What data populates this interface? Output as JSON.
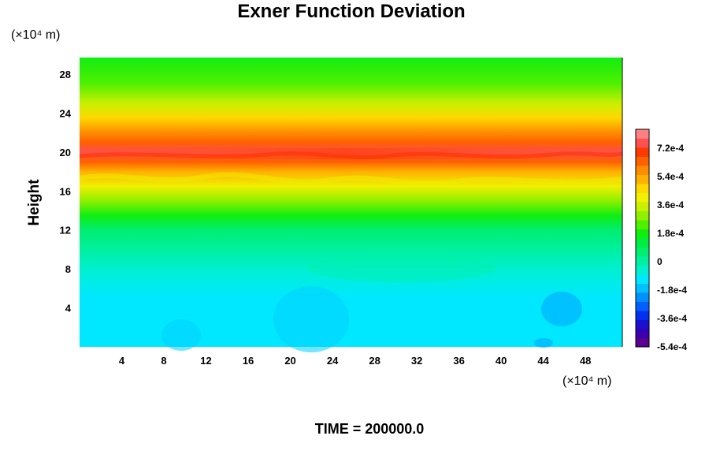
{
  "chart_data": {
    "type": "heatmap",
    "title": "Exner Function Deviation",
    "ylabel": "Height",
    "x_unit_label": "(×10⁴ m)",
    "y_unit_label": "(×10⁴ m)",
    "time_label": "TIME = 200000.0",
    "xlim": [
      0,
      51.5
    ],
    "ylim": [
      0,
      29.7
    ],
    "x_ticks": [
      4,
      8,
      12,
      16,
      20,
      24,
      28,
      32,
      36,
      40,
      44,
      48
    ],
    "x_tick_labels": [
      "4",
      "8",
      "12",
      "16",
      "20",
      "24",
      "28",
      "32",
      "36",
      "40",
      "44",
      "48"
    ],
    "y_ticks": [
      4,
      8,
      12,
      16,
      20,
      24,
      28
    ],
    "y_tick_labels": [
      "4",
      "8",
      "12",
      "16",
      "20",
      "24",
      "28"
    ],
    "colorbar": {
      "range": [
        -0.00054,
        0.00084
      ],
      "tick_values": [
        0.00072,
        0.00054,
        0.00036,
        0.00018,
        0,
        -0.00018,
        -0.00036,
        -0.00054
      ],
      "tick_labels": [
        "7.2e-4",
        "5.4e-4",
        "3.6e-4",
        "1.8e-4",
        "0",
        "-1.8e-4",
        "-3.6e-4",
        "-5.4e-4"
      ],
      "colors": [
        "#5a0090",
        "#3a00b0",
        "#1a10d0",
        "#0030f0",
        "#0060ff",
        "#0090ff",
        "#00c0ff",
        "#00e8ff",
        "#00f0d0",
        "#00f0a0",
        "#00ee70",
        "#00ee40",
        "#10ee10",
        "#50f000",
        "#90f000",
        "#c8f000",
        "#f0f000",
        "#ffd800",
        "#ffb000",
        "#ff8c00",
        "#ff6000",
        "#ff3a00",
        "#ff5050",
        "#ff8080"
      ]
    },
    "profile": [
      {
        "height": 0,
        "value": -0.00013
      },
      {
        "height": 3,
        "value": -0.00012
      },
      {
        "height": 5,
        "value": -9e-05
      },
      {
        "height": 8,
        "value": -4e-05
      },
      {
        "height": 10,
        "value": 5e-06
      },
      {
        "height": 12,
        "value": 6e-05
      },
      {
        "height": 13.5,
        "value": 0.00018
      },
      {
        "height": 15,
        "value": 0.00028
      },
      {
        "height": 16.5,
        "value": 0.00039
      },
      {
        "height": 18,
        "value": 0.0005
      },
      {
        "height": 19,
        "value": 0.00062
      },
      {
        "height": 20,
        "value": 0.00074
      },
      {
        "height": 21,
        "value": 0.00066
      },
      {
        "height": 22,
        "value": 0.00056
      },
      {
        "height": 23.5,
        "value": 0.00044
      },
      {
        "height": 25,
        "value": 0.00034
      },
      {
        "height": 27,
        "value": 0.00025
      },
      {
        "height": 29.7,
        "value": 0.00019
      }
    ]
  }
}
